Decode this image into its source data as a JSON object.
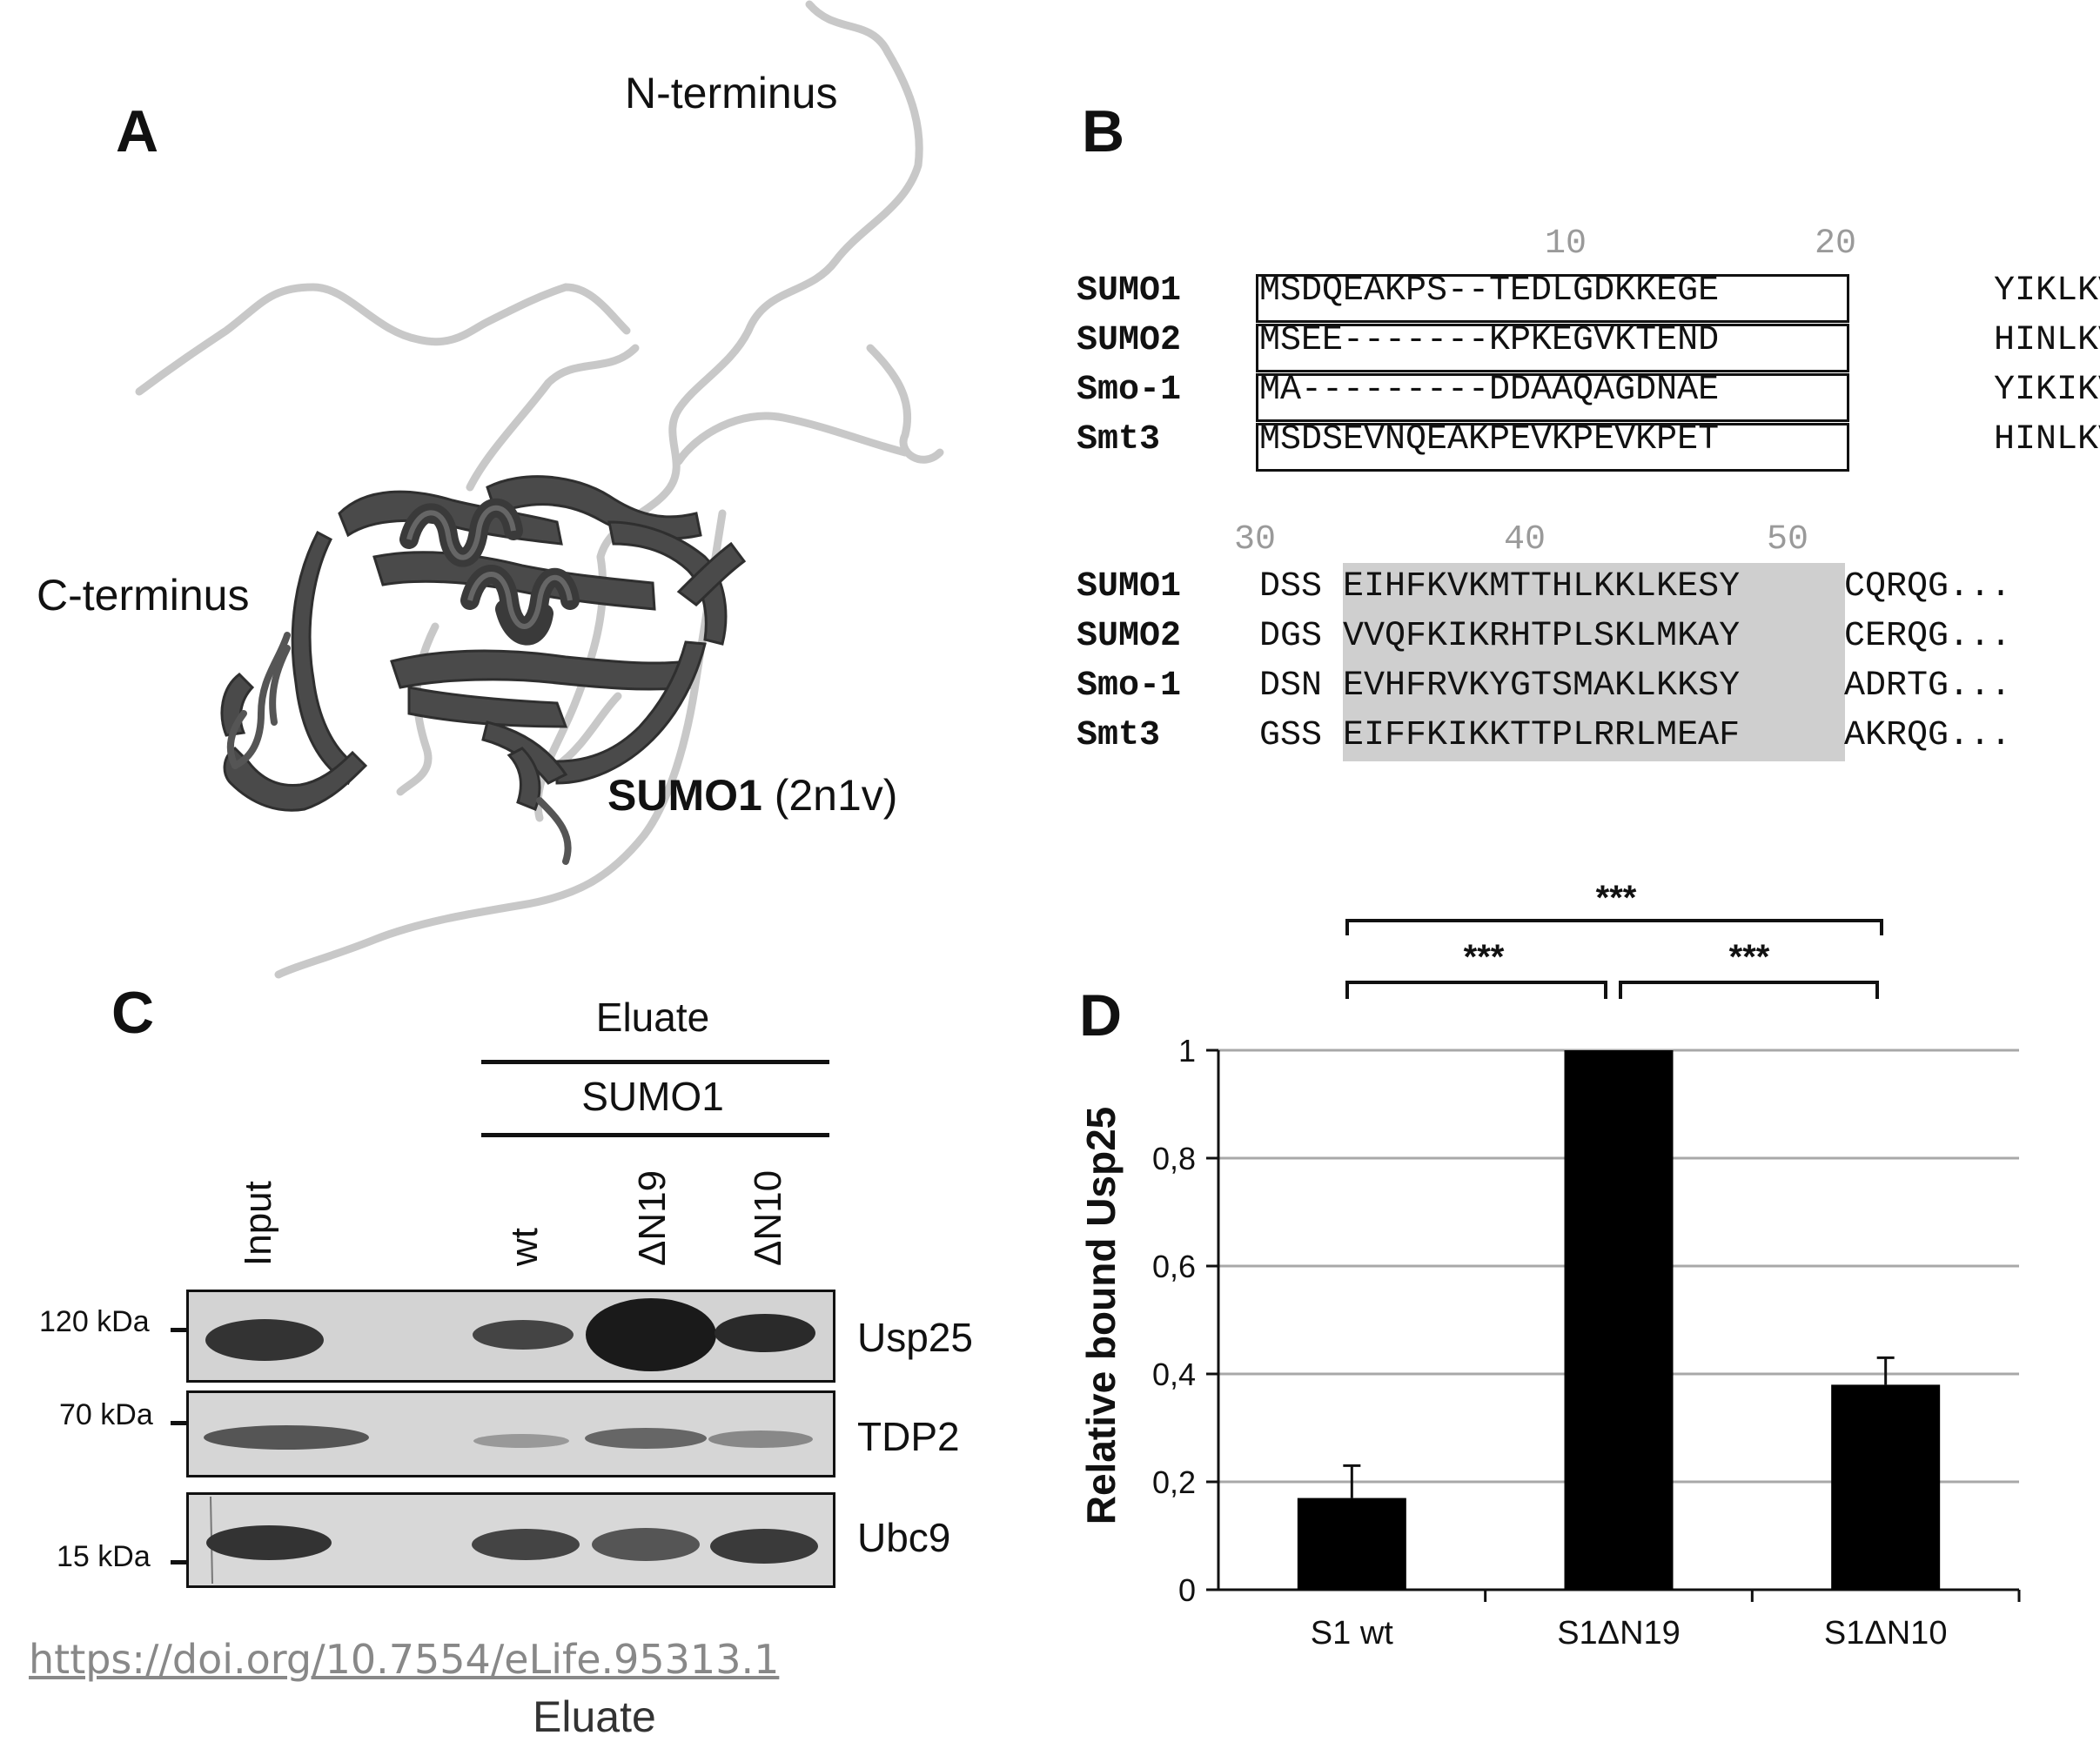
{
  "panelA": {
    "letter": "A",
    "n_terminus": "N-terminus",
    "c_terminus": "C-terminus",
    "protein_bold": "SUMO1",
    "protein_pdb": "(2n1v)"
  },
  "panelB": {
    "letter": "B",
    "block1": {
      "ruler_10": "10",
      "ruler_20": "20",
      "rows": [
        {
          "name": "SUMO1",
          "boxed": "MSDQEAKPS--TEDLGDKKEGE",
          "rest": "YIKLKVIGQ"
        },
        {
          "name": "SUMO2",
          "boxed": "MSEE-------KPKEGVKTEND",
          "rest": "HINLKVAGQ"
        },
        {
          "name": "Smo-1",
          "boxed": "MA---------DDAAQAGDNAE",
          "rest": "YIKIKVVGQ"
        },
        {
          "name": "Smt3",
          "boxed": "MSDSEVNQEAKPEVKPEVKPET",
          "rest": "HINLKVS-D"
        }
      ]
    },
    "block2": {
      "ruler_30": "30",
      "ruler_40": "40",
      "ruler_50": "50",
      "rows": [
        {
          "name": "SUMO1",
          "pre": "DSS",
          "shaded": "EIHFKVKMTTHLKKLKESY",
          "post": "CQRQG..."
        },
        {
          "name": "SUMO2",
          "pre": "DGS",
          "shaded": "VVQFKIKRHTPLSKLMKAY",
          "post": "CERQG..."
        },
        {
          "name": "Smo-1",
          "pre": "DSN",
          "shaded": "EVHFRVKYGTSMAKLKKSY",
          "post": "ADRTG..."
        },
        {
          "name": "Smt3",
          "pre": "GSS",
          "shaded": "EIFFKIKKTTPLRRLMEAF",
          "post": "AKRQG..."
        }
      ]
    }
  },
  "panelC": {
    "letter": "C",
    "eluate": "Eluate",
    "sumo1": "SUMO1",
    "lanes": [
      "Input",
      "wt",
      "ΔN19",
      "ΔN10"
    ],
    "markers": [
      "120 kDa",
      "70 kDa",
      "15 kDa"
    ],
    "proteins": [
      "Usp25",
      "TDP2",
      "Ubc9"
    ]
  },
  "panelD": {
    "letter": "D",
    "significance": [
      "***",
      "***",
      "***"
    ]
  },
  "chart_data": {
    "type": "bar",
    "categories": [
      "S1 wt",
      "S1ΔN19",
      "S1ΔN10"
    ],
    "values": [
      0.17,
      1.0,
      0.38
    ],
    "errors": [
      0.06,
      0.0,
      0.05
    ],
    "ylabel": "Relative bound Usp25",
    "xlabel": "",
    "ylim": [
      0,
      1
    ],
    "yticks": [
      "0",
      "0,2",
      "0,4",
      "0,6",
      "0,8",
      "1"
    ],
    "ytick_values": [
      0,
      0.2,
      0.4,
      0.6,
      0.8,
      1.0
    ],
    "grid": true,
    "bar_color": "#000000"
  },
  "footer": {
    "doi": "https://doi.org/10.7554/eLife.95313.1",
    "cut_text": "Eluate"
  }
}
